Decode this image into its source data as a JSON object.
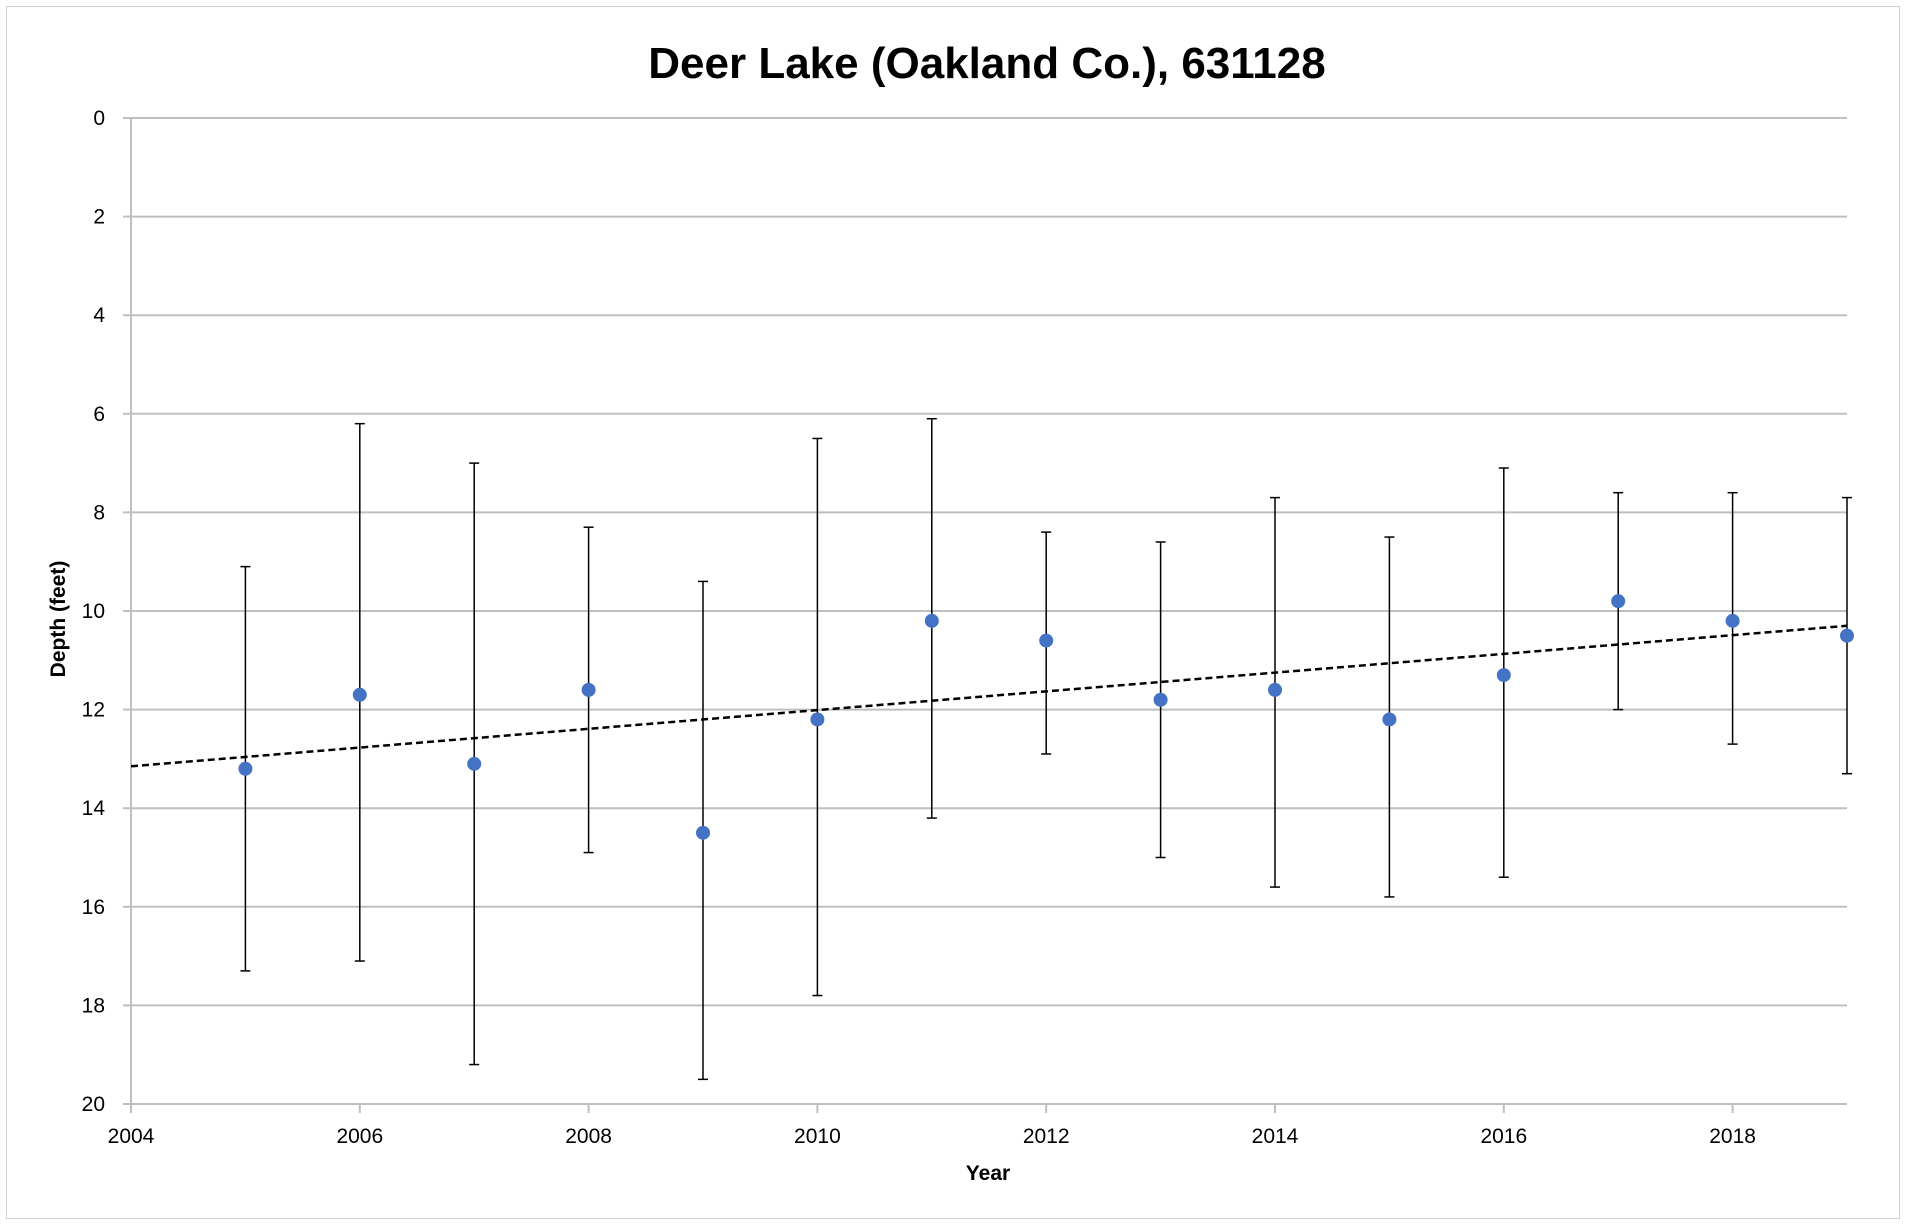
{
  "chart_data": {
    "type": "scatter",
    "title": "Deer Lake (Oakland Co.), 631128",
    "xlabel": "Year",
    "ylabel": "Depth (feet)",
    "xlim": [
      2004,
      2019
    ],
    "ylim": [
      0,
      20
    ],
    "y_inverted": true,
    "x_ticks": [
      2004,
      2006,
      2008,
      2010,
      2012,
      2014,
      2016,
      2018
    ],
    "y_ticks": [
      0,
      2,
      4,
      6,
      8,
      10,
      12,
      14,
      16,
      18,
      20
    ],
    "grid": "horizontal",
    "legend": "none",
    "marker_color": "#4472C4",
    "series": [
      {
        "x": [
          2005,
          2006,
          2007,
          2008,
          2009,
          2010,
          2011,
          2012,
          2013,
          2014,
          2015,
          2016,
          2017,
          2018,
          2019
        ],
        "y": [
          13.2,
          11.7,
          13.1,
          11.6,
          14.5,
          12.2,
          10.2,
          10.6,
          11.8,
          11.6,
          12.2,
          11.3,
          9.8,
          10.2,
          10.5
        ],
        "error_low": [
          9.1,
          6.2,
          7.0,
          8.3,
          9.4,
          6.5,
          6.1,
          8.4,
          8.6,
          7.7,
          8.5,
          7.1,
          7.6,
          7.6,
          7.7
        ],
        "error_high": [
          17.3,
          17.1,
          19.2,
          14.9,
          19.5,
          17.8,
          14.2,
          12.9,
          15.0,
          15.6,
          15.8,
          15.4,
          12.0,
          12.7,
          13.3
        ]
      }
    ],
    "trendline": {
      "type": "linear",
      "style": "dashed",
      "x": [
        2004,
        2019
      ],
      "y": [
        13.15,
        10.3
      ]
    }
  }
}
